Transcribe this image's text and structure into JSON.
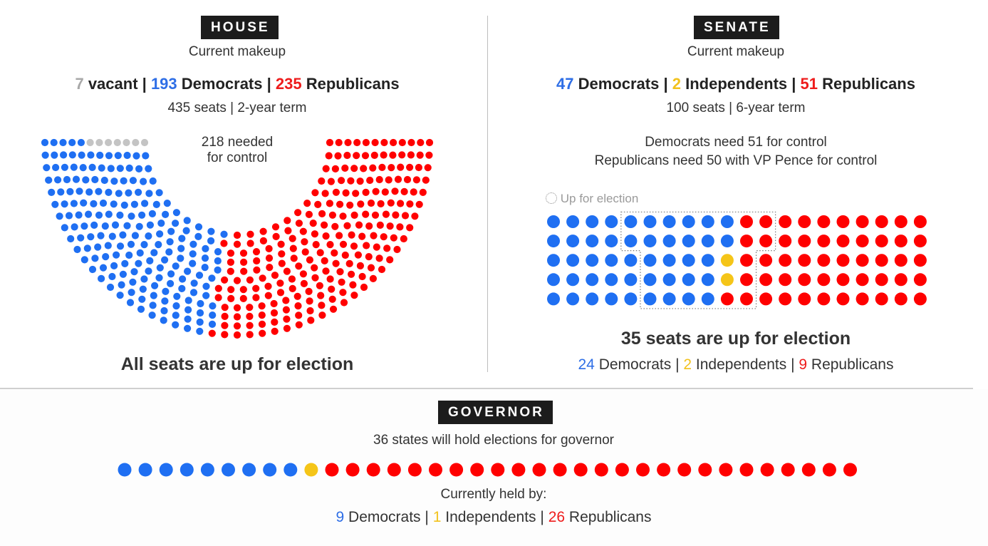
{
  "colors": {
    "democrat": "#1f6ff2",
    "independent": "#f5c518",
    "republican": "#ff0000",
    "vacant": "#c4c4c4",
    "text": "#222222"
  },
  "house": {
    "tag": "HOUSE",
    "subtitle": "Current makeup",
    "breakdown": {
      "vacant_n": "7",
      "vacant_label": "vacant",
      "sep1": "|",
      "dem_n": "193",
      "dem_label": "Democrats",
      "sep2": "|",
      "rep_n": "235",
      "rep_label": "Republicans"
    },
    "seats_term": "435 seats | 2-year term",
    "control_line1": "218 needed",
    "control_line2": "for control",
    "footer": "All seats are up for election"
  },
  "senate": {
    "tag": "SENATE",
    "subtitle": "Current makeup",
    "breakdown": {
      "dem_n": "47",
      "dem_label": "Democrats",
      "sep1": "|",
      "ind_n": "2",
      "ind_label": "Independents",
      "sep2": "|",
      "rep_n": "51",
      "rep_label": "Republicans"
    },
    "seats_term": "100 seats | 6-year term",
    "control_dem": "Democrats need 51 for control",
    "control_rep": "Republicans need 50 with VP Pence for control",
    "legend_up": "Up for election",
    "up_title": "35 seats are up for election",
    "up_breakdown": {
      "dem_n": "24",
      "dem_label": "Democrats",
      "sep1": "|",
      "ind_n": "2",
      "ind_label": "Independents",
      "sep2": "|",
      "rep_n": "9",
      "rep_label": "Republicans"
    }
  },
  "governor": {
    "tag": "GOVERNOR",
    "subtitle": "36 states will hold elections for governor",
    "held_by": "Currently held by:",
    "breakdown": {
      "dem_n": "9",
      "dem_label": "Democrats",
      "sep1": "|",
      "ind_n": "1",
      "ind_label": "Independents",
      "sep2": "|",
      "rep_n": "26",
      "rep_label": "Republicans"
    }
  },
  "chart_data": [
    {
      "type": "parliament",
      "title": "HOUSE",
      "categories": [
        "vacant",
        "Democrats",
        "Republicans"
      ],
      "values": [
        7,
        193,
        235
      ],
      "total": 435,
      "needed_for_control": 218
    },
    {
      "type": "waffle",
      "title": "SENATE",
      "categories": [
        "Democrats",
        "Independents",
        "Republicans"
      ],
      "values": [
        47,
        2,
        51
      ],
      "total": 100,
      "rows": 5,
      "cols": 20,
      "up_for_election": {
        "Democrats": 24,
        "Independents": 2,
        "Republicans": 9
      }
    },
    {
      "type": "dot",
      "title": "GOVERNOR",
      "categories": [
        "Democrats",
        "Independents",
        "Republicans"
      ],
      "values": [
        9,
        1,
        26
      ],
      "total": 36
    }
  ]
}
